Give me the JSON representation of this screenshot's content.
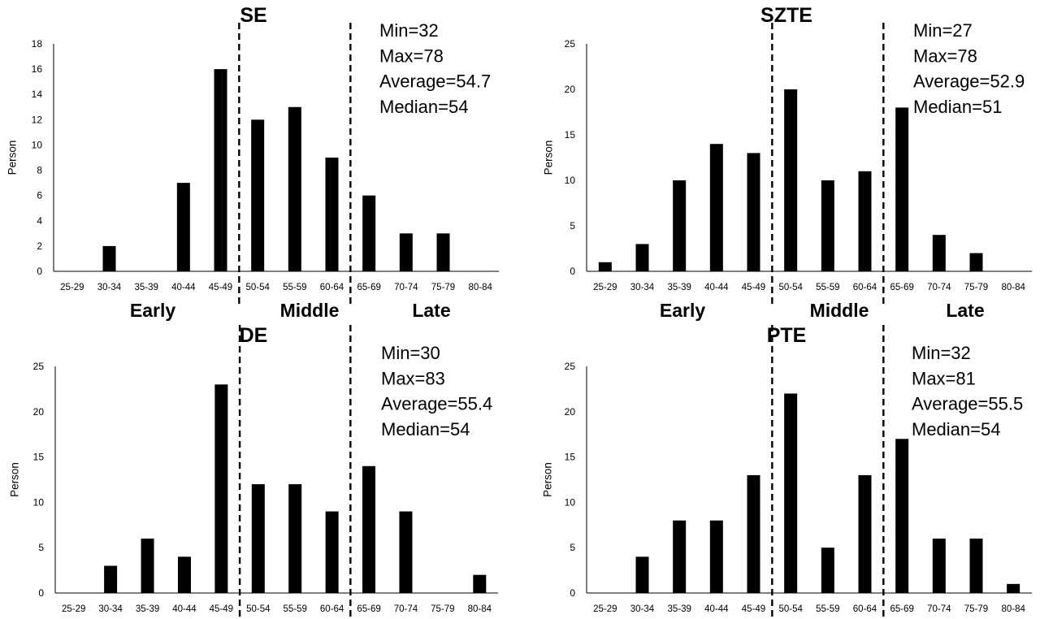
{
  "phase_labels": [
    "Early",
    "Middle",
    "Late"
  ],
  "chart_data": [
    {
      "type": "bar",
      "title": "SE",
      "categories": [
        "25-29",
        "30-34",
        "35-39",
        "40-44",
        "45-49",
        "50-54",
        "55-59",
        "60-64",
        "65-69",
        "70-74",
        "75-79",
        "80-84"
      ],
      "values": [
        0,
        2,
        0,
        7,
        16,
        12,
        13,
        9,
        6,
        3,
        3,
        0
      ],
      "ylabel": "Person",
      "xlabel": "",
      "ylim": [
        0,
        18
      ],
      "yticks": [
        0,
        2,
        4,
        6,
        8,
        10,
        12,
        14,
        16,
        18
      ],
      "stats": [
        "Min=32",
        "Max=78",
        "Average=54.7",
        "Median=54"
      ],
      "dividers_at_category_left_edge": [
        "50-54",
        "65-69"
      ],
      "grid": false,
      "legend": "none",
      "bar_color": "#000000"
    },
    {
      "type": "bar",
      "title": "SZTE",
      "categories": [
        "25-29",
        "30-34",
        "35-39",
        "40-44",
        "45-49",
        "50-54",
        "55-59",
        "60-64",
        "65-69",
        "70-74",
        "75-79",
        "80-84"
      ],
      "values": [
        1,
        3,
        10,
        14,
        13,
        20,
        10,
        11,
        18,
        4,
        2,
        0
      ],
      "ylabel": "Person",
      "xlabel": "",
      "ylim": [
        0,
        25
      ],
      "yticks": [
        0,
        5,
        10,
        15,
        20,
        25
      ],
      "stats": [
        "Min=27",
        "Max=78",
        "Average=52.9",
        "Median=51"
      ],
      "dividers_at_category_left_edge": [
        "50-54",
        "65-69"
      ],
      "grid": false,
      "legend": "none",
      "bar_color": "#000000"
    },
    {
      "type": "bar",
      "title": "DE",
      "categories": [
        "25-29",
        "30-34",
        "35-39",
        "40-44",
        "45-49",
        "50-54",
        "55-59",
        "60-64",
        "65-69",
        "70-74",
        "75-79",
        "80-84"
      ],
      "values": [
        0,
        3,
        6,
        4,
        23,
        12,
        12,
        9,
        14,
        9,
        0,
        2
      ],
      "ylabel": "Person",
      "xlabel": "",
      "ylim": [
        0,
        25
      ],
      "yticks": [
        0,
        5,
        10,
        15,
        20,
        25
      ],
      "stats": [
        "Min=30",
        "Max=83",
        "Average=55.4",
        "Median=54"
      ],
      "dividers_at_category_left_edge": [
        "50-54",
        "65-69"
      ],
      "grid": false,
      "legend": "none",
      "bar_color": "#000000"
    },
    {
      "type": "bar",
      "title": "PTE",
      "categories": [
        "25-29",
        "30-34",
        "35-39",
        "40-44",
        "45-49",
        "50-54",
        "55-59",
        "60-64",
        "65-69",
        "70-74",
        "75-79",
        "80-84"
      ],
      "values": [
        0,
        4,
        8,
        8,
        13,
        22,
        5,
        13,
        17,
        6,
        6,
        1
      ],
      "ylabel": "Person",
      "xlabel": "",
      "ylim": [
        0,
        25
      ],
      "yticks": [
        0,
        5,
        10,
        15,
        20,
        25
      ],
      "stats": [
        "Min=32",
        "Max=81",
        "Average=55.5",
        "Median=54"
      ],
      "dividers_at_category_left_edge": [
        "50-54",
        "65-69"
      ],
      "grid": false,
      "legend": "none",
      "bar_color": "#000000"
    }
  ]
}
